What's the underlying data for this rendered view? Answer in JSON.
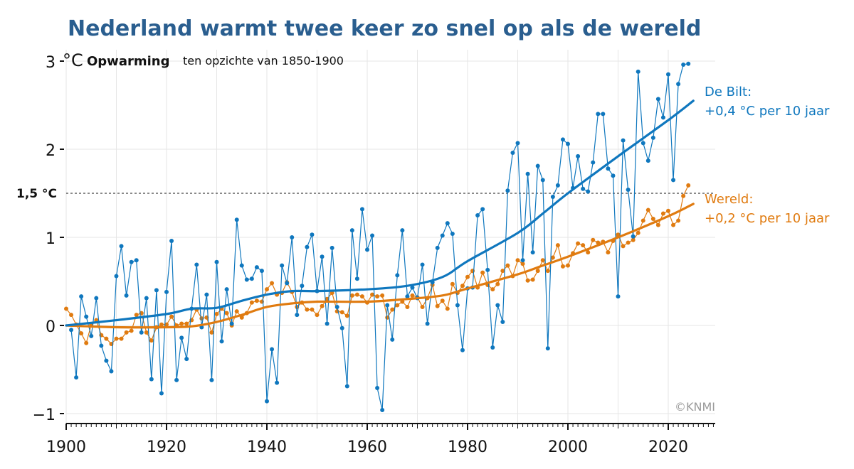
{
  "chart_data": {
    "type": "line",
    "title": "Nederland warmt twee keer zo snel op als de wereld",
    "ylabel_unit": "°C",
    "ylabel_bold": "Opwarming",
    "ylabel_rest": "ten opzichte van 1850-1900",
    "xlim": [
      1900,
      2029
    ],
    "ylim": [
      -1.1,
      3.1
    ],
    "x_ticks": [
      1900,
      1920,
      1940,
      1960,
      1980,
      2000,
      2020
    ],
    "y_ticks": [
      {
        "value": -1,
        "label": "−1"
      },
      {
        "value": 0,
        "label": "0"
      },
      {
        "value": 1,
        "label": "1"
      },
      {
        "value": 2,
        "label": "2"
      },
      {
        "value": 3,
        "label": "3"
      }
    ],
    "grid": true,
    "reference_line": {
      "value": 1.5,
      "label": "1,5 °C",
      "style": "dashed"
    },
    "credit": "©KNMI",
    "series": [
      {
        "name": "De Bilt",
        "label_line1": "De Bilt:",
        "label_line2": "+0,4 °C per 10 jaar",
        "color": "#0f77be",
        "start_year": 1901,
        "values": [
          -0.05,
          -0.59,
          0.33,
          0.1,
          -0.12,
          0.31,
          -0.23,
          -0.4,
          -0.52,
          0.56,
          0.9,
          0.34,
          0.72,
          0.74,
          -0.08,
          0.31,
          -0.61,
          0.4,
          -0.77,
          0.38,
          0.96,
          -0.62,
          -0.14,
          -0.38,
          0.19,
          0.69,
          -0.02,
          0.35,
          -0.62,
          0.72,
          -0.18,
          0.41,
          0.02,
          1.2,
          0.68,
          0.52,
          0.53,
          0.66,
          0.62,
          -0.86,
          -0.27,
          -0.65,
          0.68,
          0.48,
          1.0,
          0.12,
          0.45,
          0.89,
          1.03,
          0.39,
          0.78,
          0.02,
          0.88,
          0.21,
          -0.03,
          -0.69,
          1.08,
          0.53,
          1.32,
          0.86,
          1.02,
          -0.71,
          -0.96,
          0.23,
          -0.16,
          0.57,
          1.08,
          0.33,
          0.43,
          0.31,
          0.69,
          0.02,
          0.49,
          0.88,
          1.02,
          1.16,
          1.04,
          0.23,
          -0.28,
          0.42,
          0.43,
          1.25,
          1.32,
          0.63,
          -0.25,
          0.23,
          0.04,
          1.53,
          1.96,
          2.07,
          0.74,
          1.72,
          0.83,
          1.81,
          1.65,
          -0.26,
          1.46,
          1.59,
          2.11,
          2.06,
          1.56,
          1.92,
          1.55,
          1.52,
          1.85,
          2.4,
          2.4,
          1.78,
          1.7,
          0.33,
          2.1,
          1.54,
          1.01,
          2.88,
          2.07,
          1.87,
          2.13,
          2.57,
          2.36,
          2.85,
          1.65,
          2.74,
          2.96,
          2.97
        ],
        "trend_years": [
          1900,
          1910,
          1920,
          1925,
          1930,
          1935,
          1940,
          1945,
          1950,
          1960,
          1968,
          1975,
          1980,
          1990,
          1995,
          2000,
          2010,
          2020,
          2025
        ],
        "trend_values": [
          0.0,
          0.06,
          0.13,
          0.19,
          0.2,
          0.28,
          0.35,
          0.39,
          0.39,
          0.41,
          0.45,
          0.55,
          0.73,
          1.05,
          1.27,
          1.5,
          1.92,
          2.33,
          2.55
        ]
      },
      {
        "name": "Wereld",
        "label_line1": "Wereld:",
        "label_line2": "+0,2 °C  per 10 jaar",
        "color": "#e07b10",
        "start_year": 1900,
        "values": [
          0.19,
          0.12,
          0.01,
          -0.09,
          -0.2,
          0.01,
          0.06,
          -0.11,
          -0.15,
          -0.21,
          -0.15,
          -0.15,
          -0.08,
          -0.06,
          0.12,
          0.14,
          -0.08,
          -0.17,
          -0.02,
          0.01,
          0.01,
          0.1,
          0.0,
          0.02,
          0.02,
          0.06,
          0.18,
          0.08,
          0.09,
          -0.08,
          0.13,
          0.19,
          0.14,
          0.0,
          0.16,
          0.09,
          0.14,
          0.26,
          0.28,
          0.27,
          0.41,
          0.48,
          0.35,
          0.37,
          0.49,
          0.38,
          0.21,
          0.26,
          0.18,
          0.18,
          0.12,
          0.22,
          0.3,
          0.37,
          0.16,
          0.15,
          0.11,
          0.34,
          0.35,
          0.33,
          0.26,
          0.35,
          0.33,
          0.34,
          0.09,
          0.18,
          0.23,
          0.27,
          0.21,
          0.34,
          0.32,
          0.21,
          0.31,
          0.46,
          0.22,
          0.28,
          0.19,
          0.47,
          0.37,
          0.45,
          0.55,
          0.62,
          0.43,
          0.6,
          0.46,
          0.41,
          0.47,
          0.62,
          0.68,
          0.56,
          0.74,
          0.7,
          0.51,
          0.52,
          0.62,
          0.74,
          0.62,
          0.77,
          0.91,
          0.67,
          0.68,
          0.82,
          0.93,
          0.91,
          0.83,
          0.97,
          0.94,
          0.95,
          0.83,
          0.96,
          1.03,
          0.9,
          0.94,
          0.97,
          1.05,
          1.19,
          1.31,
          1.21,
          1.14,
          1.27,
          1.3,
          1.14,
          1.19,
          1.47,
          1.59
        ],
        "trend_years": [
          1900,
          1910,
          1920,
          1925,
          1930,
          1935,
          1940,
          1945,
          1950,
          1960,
          1968,
          1975,
          1980,
          1990,
          1995,
          2000,
          2010,
          2020,
          2025
        ],
        "trend_values": [
          0.0,
          -0.02,
          -0.02,
          -0.01,
          0.04,
          0.12,
          0.21,
          0.25,
          0.27,
          0.27,
          0.3,
          0.34,
          0.42,
          0.58,
          0.68,
          0.78,
          1.0,
          1.24,
          1.38
        ]
      }
    ]
  }
}
